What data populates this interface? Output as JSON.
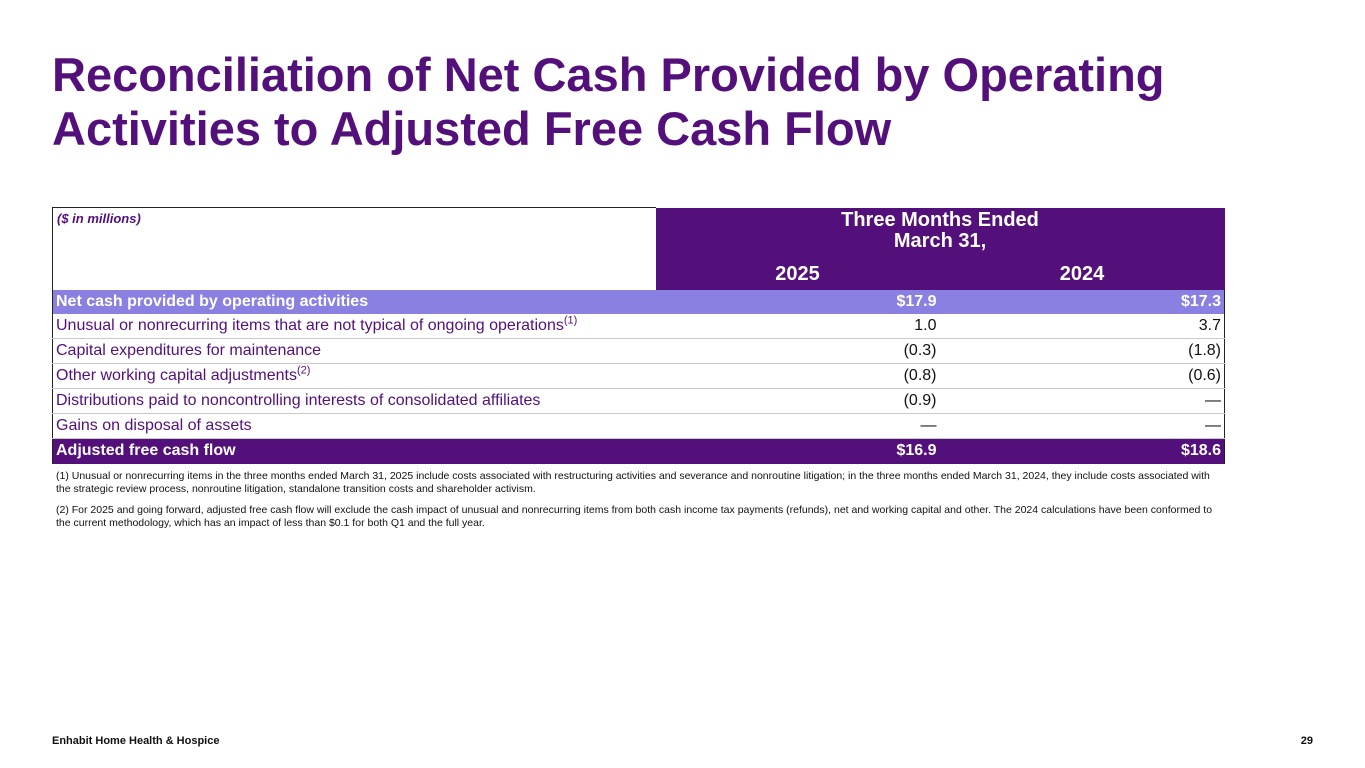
{
  "title": {
    "line1": "Reconciliation of Net Cash Provided by Operating",
    "line2": "Activities to Adjusted Free Cash Flow"
  },
  "table": {
    "unit_label": "($ in millions)",
    "period_line1": "Three Months Ended",
    "period_line2": "March 31,",
    "years": [
      "2025",
      "2024"
    ],
    "rows": [
      {
        "label": "Net cash provided by operating activities",
        "footnote": "",
        "v2025": "$17.9",
        "v2024": "$17.3"
      },
      {
        "label": "Unusual or nonrecurring items that are not typical of ongoing operations",
        "footnote": "(1)",
        "v2025": "1.0",
        "v2024": "3.7"
      },
      {
        "label": "Capital expenditures for maintenance",
        "footnote": "",
        "v2025": "(0.3)",
        "v2024": "(1.8)"
      },
      {
        "label": "Other working capital adjustments",
        "footnote": "(2)",
        "v2025": "(0.8)",
        "v2024": "(0.6)"
      },
      {
        "label": "Distributions paid to noncontrolling interests of consolidated affiliates",
        "footnote": "",
        "v2025": "(0.9)",
        "v2024": "—"
      },
      {
        "label": "Gains on disposal of assets",
        "footnote": "",
        "v2025": "—",
        "v2024": "—"
      },
      {
        "label": "Adjusted free cash flow",
        "footnote": "",
        "v2025": "$16.9",
        "v2024": "$18.6"
      }
    ]
  },
  "notes": [
    "(1) Unusual or nonrecurring items in the three months ended March 31, 2025 include costs associated with restructuring activities and severance and nonroutine litigation; in the three months ended March 31, 2024, they include costs associated with the strategic review process, nonroutine litigation, standalone transition costs and shareholder activism.",
    "(2) For 2025 and going forward, adjusted free cash flow will exclude the cash impact of unusual and nonrecurring items from both cash income tax payments (refunds), net and working capital and other.  The 2024 calculations have been conformed to the current methodology, which has an impact of less than $0.1 for both Q1 and the full year."
  ],
  "footer": {
    "company": "Enhabit Home Health & Hospice",
    "page_number": "29"
  },
  "colors": {
    "brand_purple": "#54107a",
    "highlight_lavender": "#8a80e2"
  }
}
